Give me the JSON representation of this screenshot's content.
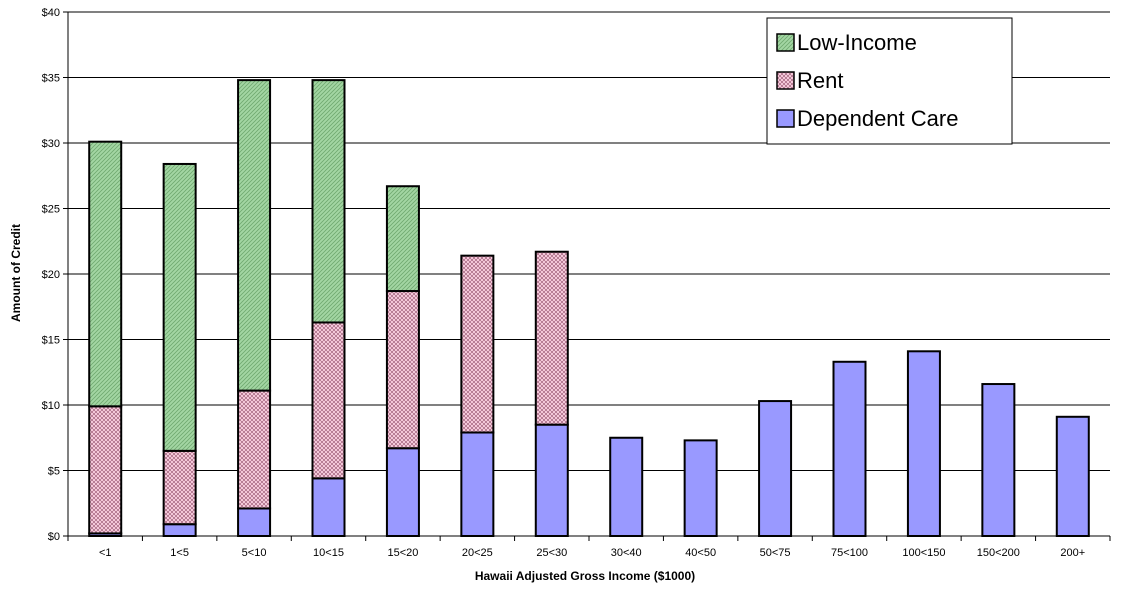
{
  "chart_data": {
    "type": "bar",
    "stacked": true,
    "title": "",
    "xlabel": "Hawaii Adjusted Gross Income ($1000)",
    "ylabel": "Amount of Credit",
    "ylim": [
      0,
      40
    ],
    "yticks": [
      0,
      5,
      10,
      15,
      20,
      25,
      30,
      35,
      40
    ],
    "ytick_labels": [
      "$0",
      "$5",
      "$10",
      "$15",
      "$20",
      "$25",
      "$30",
      "$35",
      "$40"
    ],
    "grid": true,
    "legend_position": "top-right",
    "categories": [
      "<1",
      "1<5",
      "5<10",
      "10<15",
      "15<20",
      "20<25",
      "25<30",
      "30<40",
      "40<50",
      "50<75",
      "75<100",
      "100<150",
      "150<200",
      "200+"
    ],
    "series": [
      {
        "name": "Dependent Care",
        "color": "#9999ff",
        "pattern": "solid",
        "values": [
          0.2,
          0.9,
          2.1,
          4.4,
          6.7,
          7.9,
          8.5,
          7.5,
          7.3,
          10.3,
          13.3,
          14.1,
          11.6,
          9.1
        ]
      },
      {
        "name": "Rent",
        "color": "#ffccdd",
        "pattern": "crosshatch",
        "values": [
          9.7,
          5.6,
          9.0,
          11.9,
          12.0,
          13.5,
          13.2,
          0,
          0,
          0,
          0,
          0,
          0,
          0
        ]
      },
      {
        "name": "Low-Income",
        "color": "#99cc99",
        "pattern": "diagonal",
        "values": [
          20.2,
          21.9,
          23.7,
          18.5,
          8.0,
          0,
          0,
          0,
          0,
          0,
          0,
          0,
          0,
          0
        ]
      }
    ],
    "legend_order": [
      "Low-Income",
      "Rent",
      "Dependent Care"
    ]
  }
}
